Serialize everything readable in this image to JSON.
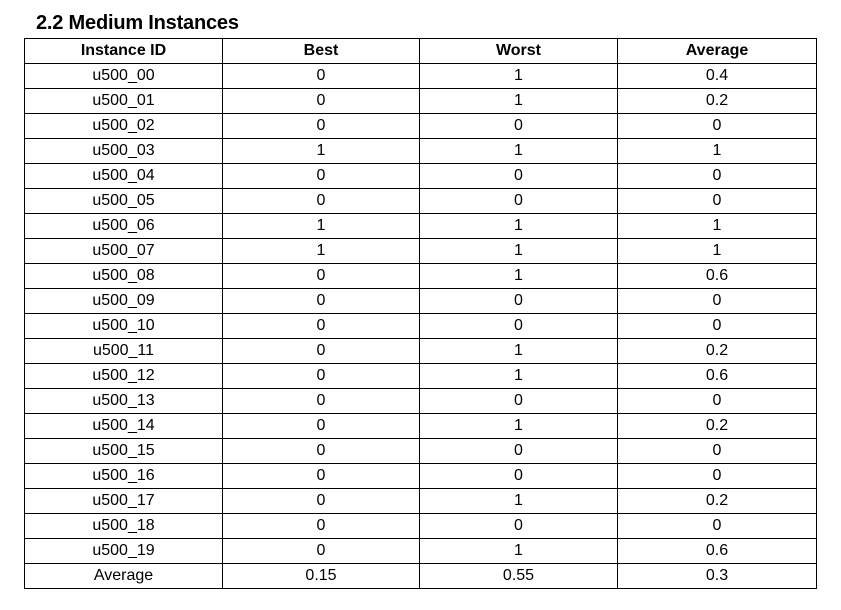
{
  "section": {
    "title": "2.2 Medium Instances"
  },
  "table": {
    "headers": [
      "Instance ID",
      "Best",
      "Worst",
      "Average"
    ],
    "rows": [
      [
        "u500_00",
        "0",
        "1",
        "0.4"
      ],
      [
        "u500_01",
        "0",
        "1",
        "0.2"
      ],
      [
        "u500_02",
        "0",
        "0",
        "0"
      ],
      [
        "u500_03",
        "1",
        "1",
        "1"
      ],
      [
        "u500_04",
        "0",
        "0",
        "0"
      ],
      [
        "u500_05",
        "0",
        "0",
        "0"
      ],
      [
        "u500_06",
        "1",
        "1",
        "1"
      ],
      [
        "u500_07",
        "1",
        "1",
        "1"
      ],
      [
        "u500_08",
        "0",
        "1",
        "0.6"
      ],
      [
        "u500_09",
        "0",
        "0",
        "0"
      ],
      [
        "u500_10",
        "0",
        "0",
        "0"
      ],
      [
        "u500_11",
        "0",
        "1",
        "0.2"
      ],
      [
        "u500_12",
        "0",
        "1",
        "0.6"
      ],
      [
        "u500_13",
        "0",
        "0",
        "0"
      ],
      [
        "u500_14",
        "0",
        "1",
        "0.2"
      ],
      [
        "u500_15",
        "0",
        "0",
        "0"
      ],
      [
        "u500_16",
        "0",
        "0",
        "0"
      ],
      [
        "u500_17",
        "0",
        "1",
        "0.2"
      ],
      [
        "u500_18",
        "0",
        "0",
        "0"
      ],
      [
        "u500_19",
        "0",
        "1",
        "0.6"
      ]
    ],
    "footer": [
      "Average",
      "0.15",
      "0.55",
      "0.3"
    ]
  }
}
